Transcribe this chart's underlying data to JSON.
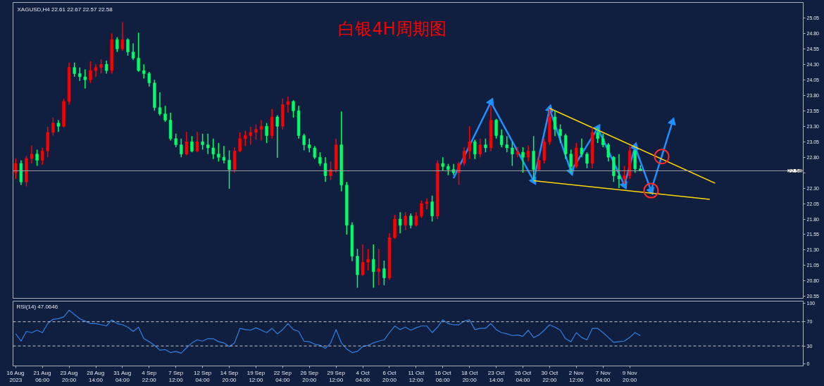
{
  "chart_data": [
    {
      "type": "candlestick",
      "title": "白银4H周期图",
      "subtitle": "XAGUSD,H4 22.61 22.67 22.57 22.58",
      "categories": [
        null,
        null,
        null,
        null,
        null,
        null,
        null,
        null,
        null,
        null,
        null,
        null,
        null,
        null,
        null,
        null,
        null,
        null,
        null,
        null,
        null,
        null,
        null,
        null,
        null,
        null,
        null,
        null,
        null,
        null,
        null,
        null,
        null,
        null,
        null,
        null,
        null,
        null,
        null,
        null,
        null,
        null,
        null,
        null,
        null,
        null,
        null,
        null,
        null,
        null,
        null,
        null,
        null,
        null,
        null,
        null,
        null,
        null,
        null,
        null,
        null,
        null,
        null,
        null,
        null,
        null,
        null,
        null,
        null,
        null,
        null,
        null,
        null,
        null,
        null,
        null,
        null,
        null,
        null,
        null,
        null,
        null,
        null,
        null,
        null,
        null,
        null,
        null,
        null,
        null,
        null,
        null,
        null,
        null,
        null,
        null,
        null,
        null,
        null,
        null,
        null,
        null,
        null,
        null,
        null,
        null,
        null,
        null,
        null,
        null,
        null,
        null,
        null,
        null,
        null,
        null,
        null,
        null,
        null,
        null,
        null,
        null,
        null,
        null,
        null,
        null,
        null,
        null,
        null,
        null,
        null,
        null,
        null,
        null,
        null,
        null,
        null,
        null,
        null,
        null,
        null,
        null,
        null,
        null,
        null,
        null,
        null,
        null
      ],
      "ohlc": [
        [
          22.55,
          22.78,
          22.45,
          22.7
        ],
        [
          22.7,
          22.75,
          22.35,
          22.4
        ],
        [
          22.4,
          22.82,
          22.33,
          22.78
        ],
        [
          22.78,
          22.99,
          22.7,
          22.85
        ],
        [
          22.85,
          22.92,
          22.66,
          22.75
        ],
        [
          22.75,
          22.95,
          22.68,
          22.9
        ],
        [
          22.9,
          23.29,
          22.8,
          23.2
        ],
        [
          23.2,
          23.44,
          23.15,
          23.35
        ],
        [
          23.35,
          23.4,
          23.21,
          23.3
        ],
        [
          23.3,
          23.74,
          23.28,
          23.7
        ],
        [
          23.7,
          24.33,
          23.65,
          24.25
        ],
        [
          24.25,
          24.33,
          24.1,
          24.15
        ],
        [
          24.15,
          24.25,
          24.03,
          24.1
        ],
        [
          24.1,
          24.22,
          23.91,
          24.05
        ],
        [
          24.05,
          24.35,
          24.0,
          24.2
        ],
        [
          24.2,
          24.3,
          24.1,
          24.25
        ],
        [
          24.25,
          24.38,
          24.15,
          24.3
        ],
        [
          24.3,
          24.36,
          24.15,
          24.2
        ],
        [
          24.2,
          24.8,
          24.15,
          24.7
        ],
        [
          24.7,
          24.74,
          24.5,
          24.55
        ],
        [
          24.55,
          24.98,
          24.52,
          24.7
        ],
        [
          24.7,
          24.72,
          24.44,
          24.5
        ],
        [
          24.5,
          24.64,
          24.37,
          24.4
        ],
        [
          24.4,
          24.81,
          24.18,
          24.2
        ],
        [
          24.2,
          24.3,
          24.07,
          24.15
        ],
        [
          24.15,
          24.18,
          23.94,
          24.0
        ],
        [
          24.0,
          24.05,
          23.55,
          23.6
        ],
        [
          23.6,
          23.85,
          23.47,
          23.5
        ],
        [
          23.5,
          23.63,
          23.37,
          23.4
        ],
        [
          23.4,
          23.52,
          23.07,
          23.1
        ],
        [
          23.1,
          23.18,
          22.96,
          23.0
        ],
        [
          23.0,
          23.1,
          22.8,
          22.85
        ],
        [
          22.85,
          23.21,
          22.83,
          23.05
        ],
        [
          23.05,
          23.14,
          22.88,
          22.9
        ],
        [
          22.9,
          23.21,
          22.88,
          23.05
        ],
        [
          23.05,
          23.18,
          22.92,
          23.0
        ],
        [
          23.0,
          23.18,
          22.85,
          22.95
        ],
        [
          22.95,
          23.1,
          22.77,
          22.85
        ],
        [
          22.85,
          23.03,
          22.73,
          22.8
        ],
        [
          22.8,
          22.98,
          22.7,
          22.75
        ],
        [
          22.75,
          22.91,
          22.29,
          22.6
        ],
        [
          22.6,
          22.96,
          22.55,
          22.9
        ],
        [
          22.9,
          23.2,
          22.88,
          23.1
        ],
        [
          23.1,
          23.22,
          22.98,
          23.15
        ],
        [
          23.15,
          23.29,
          23.0,
          23.2
        ],
        [
          23.2,
          23.33,
          23.08,
          23.25
        ],
        [
          23.25,
          23.4,
          23.07,
          23.3
        ],
        [
          23.3,
          23.35,
          23.03,
          23.15
        ],
        [
          23.15,
          23.58,
          23.1,
          23.45
        ],
        [
          23.45,
          23.48,
          22.79,
          23.3
        ],
        [
          23.3,
          23.75,
          23.25,
          23.65
        ],
        [
          23.65,
          23.78,
          23.52,
          23.7
        ],
        [
          23.7,
          23.72,
          23.44,
          23.55
        ],
        [
          23.55,
          23.63,
          23.1,
          23.15
        ],
        [
          23.15,
          23.18,
          22.91,
          23.0
        ],
        [
          23.0,
          23.1,
          22.88,
          22.95
        ],
        [
          22.95,
          22.98,
          22.77,
          22.8
        ],
        [
          22.8,
          22.88,
          22.66,
          22.7
        ],
        [
          22.7,
          22.8,
          22.4,
          22.5
        ],
        [
          22.5,
          22.73,
          22.43,
          22.6
        ],
        [
          22.6,
          23.1,
          22.55,
          23.0
        ],
        [
          23.0,
          23.54,
          22.25,
          22.35
        ],
        [
          22.35,
          22.4,
          21.55,
          21.7
        ],
        [
          21.7,
          21.75,
          21.12,
          21.2
        ],
        [
          21.2,
          21.32,
          20.69,
          20.9
        ],
        [
          20.9,
          21.39,
          20.88,
          21.1
        ],
        [
          21.1,
          21.32,
          20.97,
          21.15
        ],
        [
          21.15,
          21.39,
          20.69,
          20.95
        ],
        [
          20.95,
          21.32,
          20.73,
          21.0
        ],
        [
          21.0,
          21.13,
          20.73,
          20.85
        ],
        [
          20.85,
          21.57,
          20.82,
          21.5
        ],
        [
          21.5,
          21.87,
          21.48,
          21.8
        ],
        [
          21.8,
          21.91,
          21.57,
          21.7
        ],
        [
          21.7,
          21.91,
          21.62,
          21.85
        ],
        [
          21.85,
          21.89,
          21.65,
          21.7
        ],
        [
          21.7,
          21.91,
          21.68,
          21.85
        ],
        [
          21.85,
          22.1,
          21.82,
          22.05
        ],
        [
          22.05,
          22.14,
          21.96,
          22.08
        ],
        [
          22.08,
          22.18,
          21.76,
          21.85
        ],
        [
          21.85,
          22.75,
          21.8,
          22.7
        ],
        [
          22.7,
          22.8,
          22.58,
          22.65
        ],
        [
          22.65,
          22.69,
          22.51,
          22.6
        ],
        [
          22.6,
          22.69,
          22.51,
          22.55
        ],
        [
          22.55,
          22.73,
          22.35,
          22.7
        ],
        [
          22.7,
          22.96,
          22.66,
          22.9
        ],
        [
          22.9,
          23.3,
          22.77,
          23.05
        ],
        [
          23.05,
          23.08,
          22.77,
          22.85
        ],
        [
          22.85,
          23.1,
          22.8,
          23.0
        ],
        [
          23.0,
          23.1,
          22.88,
          22.95
        ],
        [
          22.95,
          23.63,
          22.9,
          23.4
        ],
        [
          23.4,
          23.42,
          23.1,
          23.15
        ],
        [
          23.15,
          23.25,
          22.96,
          23.0
        ],
        [
          23.0,
          23.14,
          22.88,
          22.95
        ],
        [
          22.95,
          23.05,
          22.66,
          22.85
        ],
        [
          22.85,
          22.96,
          22.8,
          22.88
        ],
        [
          22.88,
          22.96,
          22.55,
          22.8
        ],
        [
          22.8,
          22.99,
          22.73,
          22.9
        ],
        [
          22.9,
          23.14,
          22.43,
          22.6
        ],
        [
          22.6,
          22.88,
          22.58,
          22.75
        ],
        [
          22.75,
          23.1,
          22.7,
          23.05
        ],
        [
          23.05,
          23.58,
          23.0,
          23.45
        ],
        [
          23.45,
          23.55,
          23.14,
          23.25
        ],
        [
          23.25,
          23.33,
          23.03,
          23.15
        ],
        [
          23.15,
          23.18,
          22.77,
          22.85
        ],
        [
          22.85,
          22.92,
          22.55,
          22.65
        ],
        [
          22.65,
          23.03,
          22.62,
          22.95
        ],
        [
          22.95,
          23.1,
          22.8,
          22.85
        ],
        [
          22.85,
          22.88,
          22.62,
          22.7
        ],
        [
          22.7,
          23.28,
          22.62,
          23.2
        ],
        [
          23.2,
          23.28,
          23.03,
          23.1
        ],
        [
          23.1,
          23.18,
          22.96,
          23.0
        ],
        [
          23.0,
          23.03,
          22.73,
          22.8
        ],
        [
          22.8,
          22.82,
          22.4,
          22.5
        ],
        [
          22.5,
          22.85,
          22.3,
          22.45
        ],
        [
          22.45,
          22.66,
          22.37,
          22.5
        ],
        [
          22.5,
          22.98,
          22.45,
          22.9
        ],
        [
          22.9,
          22.92,
          22.55,
          22.61
        ],
        [
          22.61,
          22.67,
          22.57,
          22.58
        ],
        null,
        null,
        null,
        null,
        null,
        null,
        null,
        null,
        null,
        null,
        null,
        null,
        null,
        null,
        null,
        null,
        null,
        null,
        null,
        null,
        null,
        null,
        null,
        null,
        null,
        null,
        null,
        null,
        null,
        null
      ],
      "colors": [
        "#ff0000",
        "#00ff66",
        "#ff0000",
        "#ff0000",
        "#00ff66",
        "#ff0000",
        "#ff0000",
        "#ff0000",
        "#00ff66",
        "#ff0000",
        "#ff0000",
        "#00ff66",
        "#00ff66",
        "#00ff66",
        "#ff0000",
        "#ff0000",
        "#ff0000",
        "#00ff66",
        "#ff0000",
        "#00ff66",
        "#ff0000",
        "#00ff66",
        "#00ff66",
        "#00ff66",
        "#00ff66",
        "#00ff66",
        "#00ff66",
        "#00ff66",
        "#00ff66",
        "#00ff66",
        "#00ff66",
        "#00ff66",
        "#ff0000",
        "#00ff66",
        "#ff0000",
        "#00ff66",
        "#00ff66",
        "#00ff66",
        "#00ff66",
        "#00ff66",
        "#00ff66",
        "#ff0000",
        "#ff0000",
        "#ff0000",
        "#ff0000",
        "#ff0000",
        "#ff0000",
        "#00ff66",
        "#ff0000",
        "#00ff66",
        "#ff0000",
        "#ff0000",
        "#00ff66",
        "#00ff66",
        "#00ff66",
        "#00ff66",
        "#00ff66",
        "#00ff66",
        "#00ff66",
        "#ff0000",
        "#ff0000",
        "#00ff66",
        "#00ff66",
        "#00ff66",
        "#00ff66",
        "#ff0000",
        "#ff0000",
        "#00ff66",
        "#ff0000",
        "#00ff66",
        "#ff0000",
        "#ff0000",
        "#00ff66",
        "#ff0000",
        "#00ff66",
        "#ff0000",
        "#ff0000",
        "#ff0000",
        "#00ff66",
        "#ff0000",
        "#00ff66",
        "#00ff66",
        "#00ff66",
        "#ff0000",
        "#ff0000",
        "#ff0000",
        "#00ff66",
        "#ff0000",
        "#00ff66",
        "#ff0000",
        "#00ff66",
        "#00ff66",
        "#00ff66",
        "#00ff66",
        "#ff0000",
        "#00ff66",
        "#ff0000",
        "#00ff66",
        "#ff0000",
        "#ff0000",
        "#ff0000",
        "#00ff66",
        "#00ff66",
        "#00ff66",
        "#00ff66",
        "#ff0000",
        "#00ff66",
        "#00ff66",
        "#ff0000",
        "#00ff66",
        "#00ff66",
        "#00ff66",
        "#00ff66",
        "#00ff66",
        "#ff0000",
        "#ff0000",
        "#00ff66",
        "#00ff66",
        null,
        null,
        null,
        null,
        null,
        null,
        null,
        null,
        null,
        null,
        null,
        null,
        null,
        null,
        null,
        null,
        null,
        null,
        null,
        null,
        null,
        null,
        null,
        null,
        null,
        null,
        null,
        null,
        null,
        null
      ],
      "ylim": [
        20.52,
        25.3
      ],
      "yticks": [
        20.55,
        {
          "value": 20.8,
          "label": "20.80"
        },
        21.05,
        {
          "value": 21.3,
          "label": "21.30"
        },
        21.55,
        {
          "value": 21.8,
          "label": "21.80"
        },
        22.05,
        {
          "value": 22.3,
          "label": "22.30"
        },
        {
          "value": 22.55,
          "label": null
        },
        {
          "value": 22.8,
          "label": "22.80"
        },
        23.05,
        {
          "value": 23.3,
          "label": "23.30"
        },
        23.55,
        {
          "value": 23.8,
          "label": "23.80"
        },
        24.05,
        {
          "value": 24.3,
          "label": "24.30"
        },
        24.55,
        {
          "value": 24.8,
          "label": "24.80"
        },
        25.05
      ],
      "tick_labels": "y",
      "ref_lines": [
        {
          "axis": "y",
          "value": 22.58,
          "label": "22.58",
          "color": "#9a9ea8"
        }
      ],
      "series": [
        {
          "type": "line",
          "color": "#1e90ff",
          "marker": "triangle",
          "values": [
            null,
            null,
            null,
            null,
            null,
            null,
            null,
            null,
            null,
            null,
            null,
            null,
            null,
            null,
            null,
            null,
            null,
            null,
            null,
            null,
            null,
            null,
            null,
            null,
            null,
            null,
            null,
            null,
            null,
            null,
            null,
            null,
            null,
            null,
            null,
            null,
            null,
            null,
            null,
            null,
            null,
            null,
            null,
            null,
            null,
            null,
            null,
            null,
            null,
            null,
            null,
            null,
            null,
            null,
            null,
            null,
            null,
            null,
            null,
            null,
            null,
            null,
            null,
            null,
            null,
            null,
            null,
            null,
            null,
            null,
            null,
            null,
            null,
            null,
            null,
            null,
            null,
            null,
            null,
            null,
            null,
            null,
            22.46,
            null,
            null,
            null,
            null,
            null,
            null,
            23.69,
            null,
            null,
            null,
            null,
            null,
            null,
            null,
            22.42,
            null,
            null,
            23.58,
            null,
            null,
            null,
            22.57,
            null,
            null,
            null,
            null,
            23.27,
            null,
            null,
            null,
            null,
            22.35,
            null,
            22.97,
            null,
            null,
            22.26,
            null,
            null,
            null,
            23.37,
            null,
            null,
            null,
            null,
            null,
            null,
            null,
            null,
            null,
            null,
            null,
            null,
            null,
            null,
            null,
            null,
            null,
            null,
            null,
            null,
            null,
            null,
            null,
            null
          ]
        },
        {
          "type": "line",
          "color": "#ffd700",
          "values": [
            null,
            null,
            null,
            null,
            null,
            null,
            null,
            null,
            null,
            null,
            null,
            null,
            null,
            null,
            null,
            null,
            null,
            null,
            null,
            null,
            null,
            null,
            null,
            null,
            null,
            null,
            null,
            null,
            null,
            null,
            null,
            null,
            null,
            null,
            null,
            null,
            null,
            null,
            null,
            null,
            null,
            null,
            null,
            null,
            null,
            null,
            null,
            null,
            null,
            null,
            null,
            null,
            null,
            null,
            null,
            null,
            null,
            null,
            null,
            null,
            null,
            null,
            null,
            null,
            null,
            null,
            null,
            null,
            null,
            null,
            null,
            null,
            null,
            null,
            null,
            null,
            null,
            null,
            null,
            null,
            null,
            null,
            null,
            null,
            null,
            null,
            null,
            null,
            null,
            null,
            null,
            null,
            null,
            null,
            null,
            null,
            null,
            null,
            null,
            null,
            23.59,
            null,
            null,
            null,
            null,
            null,
            null,
            null,
            null,
            null,
            null,
            null,
            null,
            null,
            null,
            null,
            null,
            null,
            null,
            null,
            null,
            null,
            null,
            null,
            null,
            null,
            null,
            null,
            null,
            null,
            null,
            22.38,
            null,
            null,
            null,
            null,
            null,
            null,
            null,
            null,
            null,
            null,
            null,
            null,
            null,
            null,
            null,
            null
          ]
        },
        {
          "type": "line",
          "color": "#ffd700",
          "values": [
            null,
            null,
            null,
            null,
            null,
            null,
            null,
            null,
            null,
            null,
            null,
            null,
            null,
            null,
            null,
            null,
            null,
            null,
            null,
            null,
            null,
            null,
            null,
            null,
            null,
            null,
            null,
            null,
            null,
            null,
            null,
            null,
            null,
            null,
            null,
            null,
            null,
            null,
            null,
            null,
            null,
            null,
            null,
            null,
            null,
            null,
            null,
            null,
            null,
            null,
            null,
            null,
            null,
            null,
            null,
            null,
            null,
            null,
            null,
            null,
            null,
            null,
            null,
            null,
            null,
            null,
            null,
            null,
            null,
            null,
            null,
            null,
            null,
            null,
            null,
            null,
            null,
            null,
            null,
            null,
            null,
            null,
            null,
            null,
            null,
            null,
            null,
            null,
            null,
            null,
            null,
            null,
            null,
            null,
            null,
            null,
            null,
            22.42,
            null,
            null,
            null,
            null,
            null,
            null,
            null,
            null,
            null,
            null,
            null,
            null,
            null,
            null,
            null,
            null,
            null,
            null,
            null,
            null,
            null,
            null,
            null,
            null,
            null,
            null,
            null,
            null,
            null,
            null,
            null,
            null,
            22.12,
            null,
            null,
            null,
            null,
            null,
            null,
            null,
            null,
            null,
            null,
            null,
            null,
            null,
            null,
            null,
            null,
            null
          ]
        },
        {
          "type": "scatter",
          "color": "#ff2a2a",
          "marker": "circle",
          "values": [
            null,
            null,
            null,
            null,
            null,
            null,
            null,
            null,
            null,
            null,
            null,
            null,
            null,
            null,
            null,
            null,
            null,
            null,
            null,
            null,
            null,
            null,
            null,
            null,
            null,
            null,
            null,
            null,
            null,
            null,
            null,
            null,
            null,
            null,
            null,
            null,
            null,
            null,
            null,
            null,
            null,
            null,
            null,
            null,
            null,
            null,
            null,
            null,
            null,
            null,
            null,
            null,
            null,
            null,
            null,
            null,
            null,
            null,
            null,
            null,
            null,
            null,
            null,
            null,
            null,
            null,
            null,
            null,
            null,
            null,
            null,
            null,
            null,
            null,
            null,
            null,
            null,
            null,
            null,
            null,
            null,
            null,
            null,
            null,
            null,
            null,
            null,
            null,
            null,
            null,
            null,
            null,
            null,
            null,
            null,
            null,
            null,
            null,
            null,
            null,
            null,
            null,
            null,
            null,
            null,
            null,
            null,
            null,
            null,
            null,
            null,
            null,
            null,
            null,
            null,
            null,
            null,
            null,
            null,
            22.26,
            null,
            22.81,
            null,
            null,
            null,
            null,
            null,
            null,
            null,
            null,
            null,
            null,
            null,
            null,
            null,
            null,
            null,
            null,
            null,
            null,
            null,
            null,
            null,
            null,
            null,
            null,
            null,
            null
          ]
        }
      ]
    },
    {
      "type": "line",
      "title": "RSI(14) 47.0646",
      "categories": [
        "16 Aug 2023",
        null,
        null,
        null,
        null,
        "21 Aug 06:00",
        null,
        null,
        null,
        null,
        "23 Aug 20:00",
        null,
        null,
        null,
        null,
        "28 Aug 14:00",
        null,
        null,
        null,
        null,
        "31 Aug 04:00",
        null,
        null,
        null,
        null,
        "4 Sep 22:00",
        null,
        null,
        null,
        null,
        "7 Sep 12:00",
        null,
        null,
        null,
        null,
        "12 Sep 04:00",
        null,
        null,
        null,
        null,
        "14 Sep 20:00",
        null,
        null,
        null,
        null,
        "19 Sep 12:00",
        null,
        null,
        null,
        null,
        "22 Sep 04:00",
        null,
        null,
        null,
        null,
        "26 Sep 20:00",
        null,
        null,
        null,
        null,
        "29 Sep 12:00",
        null,
        null,
        null,
        null,
        "4 Oct 04:00",
        null,
        null,
        null,
        null,
        "6 Oct 20:00",
        null,
        null,
        null,
        null,
        "11 Oct 12:00",
        null,
        null,
        null,
        null,
        "16 Oct 06:00",
        null,
        null,
        null,
        null,
        "18 Oct 20:00",
        null,
        null,
        null,
        null,
        "23 Oct 14:00",
        null,
        null,
        null,
        null,
        "26 Oct 04:00",
        null,
        null,
        null,
        null,
        "30 Oct 22:00",
        null,
        null,
        null,
        null,
        "2 Nov 12:00",
        null,
        null,
        null,
        null,
        "7 Nov 04:00",
        null,
        null,
        null,
        null,
        "9 Nov 20:00",
        null,
        null,
        null,
        null,
        null,
        null,
        null,
        null,
        null,
        null,
        null,
        null,
        null,
        null,
        null,
        null,
        null,
        null,
        null,
        null,
        null,
        null,
        null,
        null,
        null,
        null,
        null,
        null,
        null,
        null,
        null,
        null
      ],
      "values": [
        50,
        38,
        54,
        52,
        56,
        52,
        67,
        74,
        75,
        78,
        89,
        82,
        75,
        71,
        67,
        67,
        65,
        63,
        73,
        67,
        65,
        61,
        54,
        61,
        42,
        37,
        31,
        23,
        24,
        19,
        21,
        18,
        27,
        35,
        40,
        38,
        42,
        42,
        37,
        35,
        29,
        35,
        59,
        57,
        56,
        60,
        56,
        52,
        59,
        50,
        57,
        67,
        57,
        54,
        38,
        37,
        33,
        31,
        26,
        35,
        57,
        35,
        25,
        19,
        21,
        29,
        31,
        35,
        38,
        40,
        52,
        63,
        57,
        61,
        56,
        60,
        63,
        63,
        52,
        61,
        73,
        67,
        65,
        65,
        71,
        73,
        57,
        59,
        59,
        67,
        57,
        52,
        50,
        47,
        48,
        46,
        56,
        44,
        48,
        56,
        65,
        61,
        56,
        42,
        37,
        52,
        44,
        40,
        59,
        59,
        52,
        44,
        36,
        37,
        38,
        44,
        52,
        47,
        null,
        null,
        null,
        null,
        null,
        null,
        null,
        null,
        null,
        null,
        null,
        null,
        null,
        null,
        null,
        null,
        null,
        null,
        null,
        null,
        null,
        null,
        null,
        null,
        null,
        null,
        null,
        null,
        null,
        null
      ],
      "color": "#2f80e0",
      "ylim": [
        -3,
        104
      ],
      "yticks": [
        0,
        30,
        70,
        100
      ],
      "ref_lines": [
        {
          "axis": "y",
          "value": 70,
          "color": "#c8c8c8",
          "line_style": "dashed"
        },
        {
          "axis": "y",
          "value": 30,
          "color": "#c8c8c8",
          "line_style": "dashed"
        }
      ]
    }
  ]
}
